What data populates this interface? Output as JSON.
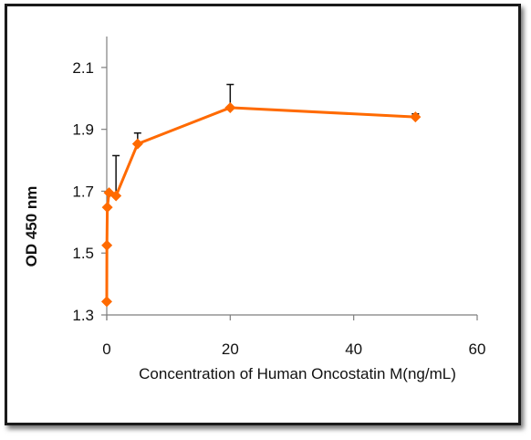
{
  "chart_data": {
    "type": "scatter",
    "title": "",
    "xlabel": "Concentration of Human Oncostatin M(ng/mL)",
    "ylabel": "OD 450 nm",
    "xlim": [
      0,
      60
    ],
    "ylim": [
      1.3,
      2.2
    ],
    "xticks": [
      "0",
      "20",
      "40",
      "60"
    ],
    "yticks": [
      "1.3",
      "1.5",
      "1.7",
      "1.9",
      "2.1"
    ],
    "grid": false,
    "legend": "none",
    "series": [
      {
        "color": "#ff6a00",
        "marker": "diamond",
        "x": [
          0,
          0.023,
          0.094,
          0.375,
          1.5,
          5,
          20,
          50
        ],
        "y": [
          1.343,
          1.525,
          1.648,
          1.695,
          1.685,
          1.853,
          1.97,
          1.94
        ],
        "error": [
          0,
          0,
          0,
          0,
          0.13,
          0.035,
          0.075,
          0.01
        ]
      }
    ]
  }
}
